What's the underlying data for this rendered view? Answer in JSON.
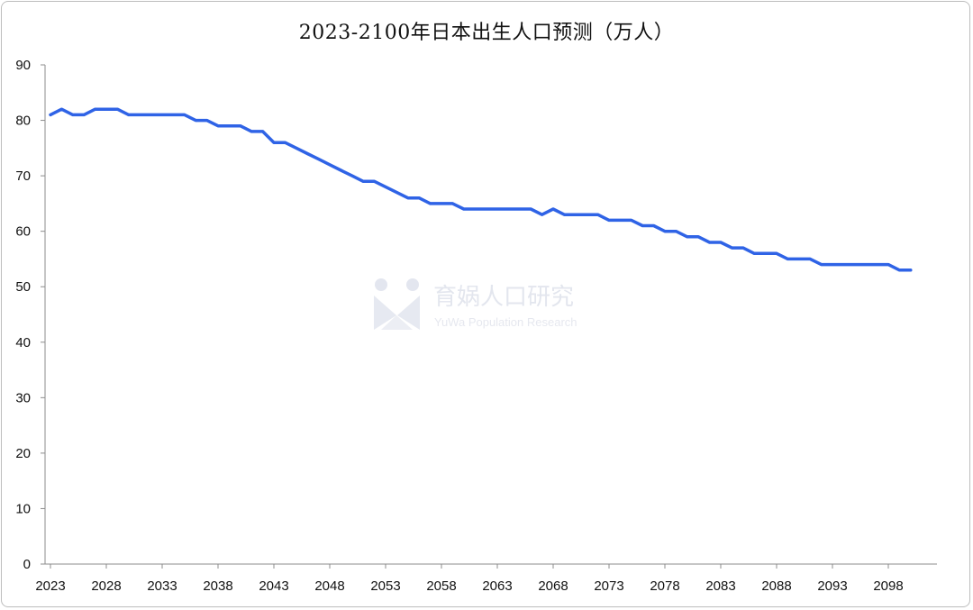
{
  "chart_data": {
    "type": "line",
    "title": "2023-2100年日本出生人口预测（万人）",
    "xlabel": "",
    "ylabel": "",
    "ylim": [
      0,
      90
    ],
    "yticks": [
      0,
      10,
      20,
      30,
      40,
      50,
      60,
      70,
      80,
      90
    ],
    "xticks": [
      2023,
      2028,
      2033,
      2038,
      2043,
      2048,
      2053,
      2058,
      2063,
      2068,
      2073,
      2078,
      2083,
      2088,
      2093,
      2098
    ],
    "grid": false,
    "legend": "none",
    "series": [
      {
        "color": "#2f63e6",
        "x": [
          2023,
          2024,
          2025,
          2026,
          2027,
          2028,
          2029,
          2030,
          2031,
          2032,
          2033,
          2034,
          2035,
          2036,
          2037,
          2038,
          2039,
          2040,
          2041,
          2042,
          2043,
          2044,
          2045,
          2046,
          2047,
          2048,
          2049,
          2050,
          2051,
          2052,
          2053,
          2054,
          2055,
          2056,
          2057,
          2058,
          2059,
          2060,
          2061,
          2062,
          2063,
          2064,
          2065,
          2066,
          2067,
          2068,
          2069,
          2070,
          2071,
          2072,
          2073,
          2074,
          2075,
          2076,
          2077,
          2078,
          2079,
          2080,
          2081,
          2082,
          2083,
          2084,
          2085,
          2086,
          2087,
          2088,
          2089,
          2090,
          2091,
          2092,
          2093,
          2094,
          2095,
          2096,
          2097,
          2098,
          2099,
          2100
        ],
        "values": [
          81,
          82,
          81,
          81,
          82,
          82,
          82,
          81,
          81,
          81,
          81,
          81,
          81,
          80,
          80,
          79,
          79,
          79,
          78,
          78,
          76,
          76,
          75,
          74,
          73,
          72,
          71,
          70,
          69,
          69,
          68,
          67,
          66,
          66,
          65,
          65,
          65,
          64,
          64,
          64,
          64,
          64,
          64,
          64,
          63,
          64,
          63,
          63,
          63,
          63,
          62,
          62,
          62,
          61,
          61,
          60,
          60,
          59,
          59,
          58,
          58,
          57,
          57,
          56,
          56,
          56,
          55,
          55,
          55,
          54,
          54,
          54,
          54,
          54,
          54,
          54,
          53,
          53
        ]
      }
    ]
  },
  "watermark": {
    "text": "育娲人口研究",
    "subtext": "YuWa Population Research"
  }
}
